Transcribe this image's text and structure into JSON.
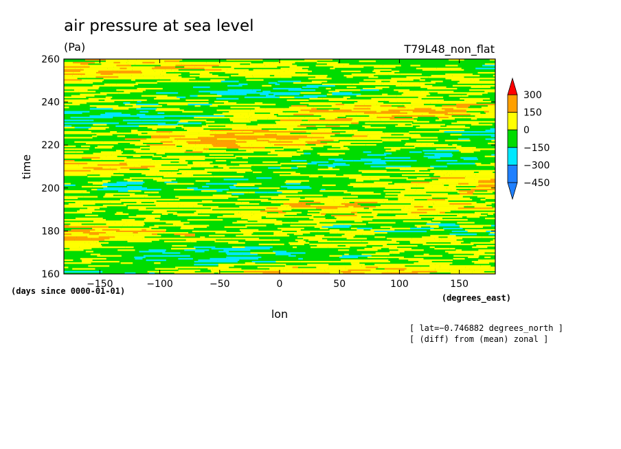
{
  "chart_data": {
    "type": "heatmap",
    "title": "air pressure at sea level",
    "units": "(Pa)",
    "run_label": "T79L48_non_flat",
    "xlabel": "lon",
    "x_units": "(degrees_east)",
    "ylabel": "time",
    "y_units": "(days since 0000-01-01)",
    "xlim": [
      -180,
      180
    ],
    "ylim": [
      160,
      260
    ],
    "x_ticks": [
      -150,
      -100,
      -50,
      0,
      50,
      100,
      150
    ],
    "y_ticks": [
      160,
      180,
      200,
      220,
      240,
      260
    ],
    "x_tick_labels": [
      "−150",
      "−100",
      "−50",
      "0",
      "50",
      "100",
      "150"
    ],
    "y_tick_labels": [
      "160",
      "180",
      "200",
      "220",
      "240",
      "260"
    ],
    "notes": [
      "[ lat=−0.746882 degrees_north ]",
      "[ (diff) from (mean) zonal ]"
    ],
    "colorbar": {
      "levels": [
        -450,
        -300,
        -150,
        0,
        150,
        300
      ],
      "labels": [
        "−450",
        "−300",
        "−150",
        "0",
        "150",
        "300"
      ],
      "colors": [
        "#1f80ff",
        "#00e8ff",
        "#00dc00",
        "#ffff00",
        "#ffa000",
        "#ff0000"
      ],
      "extend": "both"
    },
    "field_character": "zonal anomaly of sea-level pressure, mostly within −150 to 150 Pa, streaky in time"
  }
}
